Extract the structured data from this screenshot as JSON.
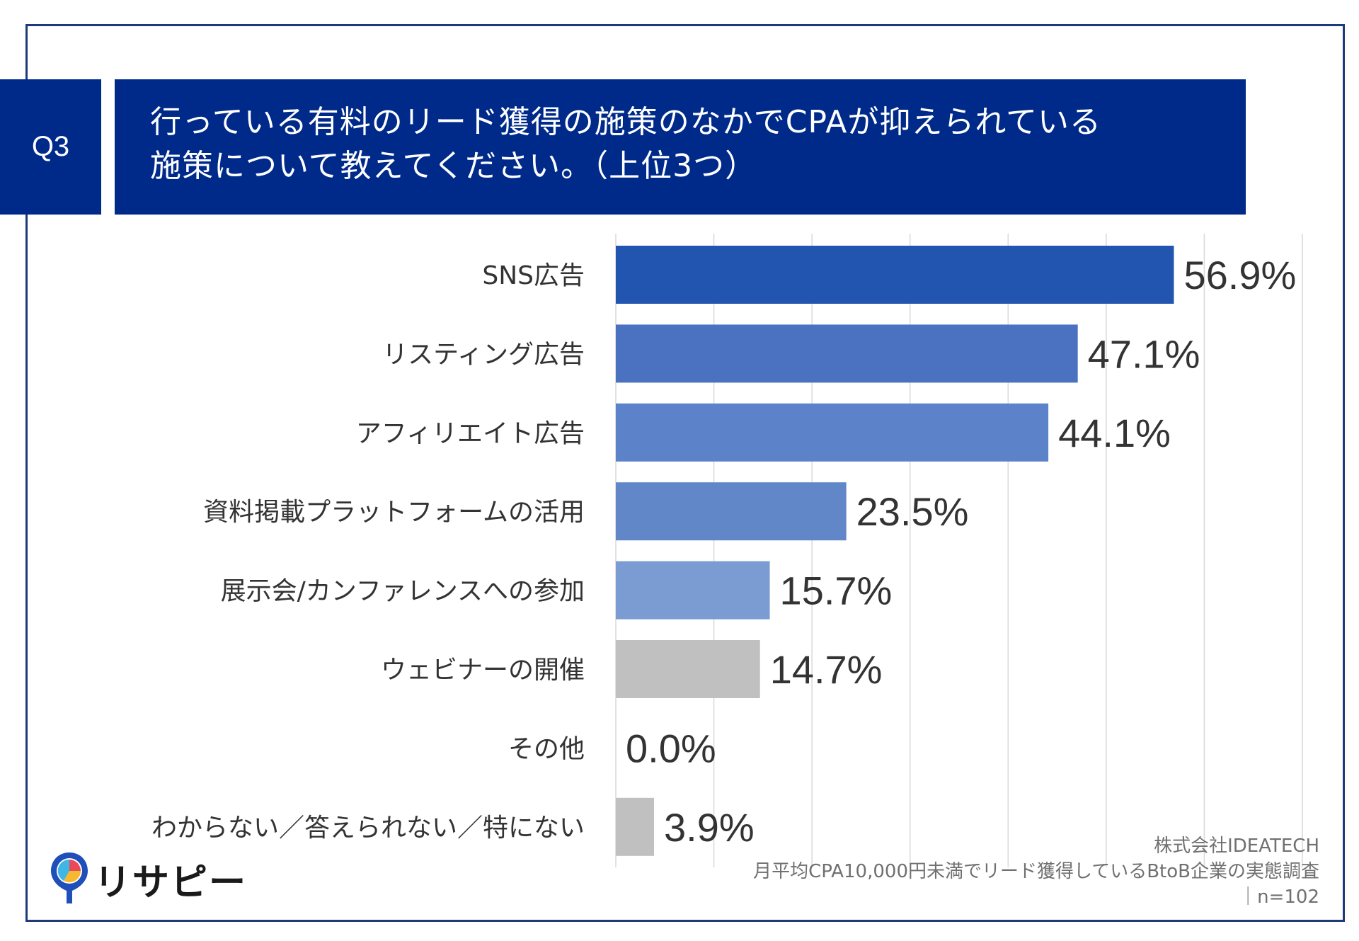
{
  "header": {
    "badge": "Q3",
    "title_line1": "行っている有料のリード獲得の施策のなかでCPAが抑えられている",
    "title_line2": "施策について教えてください。（上位3つ）"
  },
  "chart_data": {
    "type": "bar",
    "orientation": "horizontal",
    "title": "行っている有料のリード獲得の施策のなかでCPAが抑えられている施策について教えてください。（上位3つ）",
    "categories": [
      "SNS広告",
      "リスティング広告",
      "アフィリエイト広告",
      "資料掲載プラットフォームの活用",
      "展示会/カンファレンスへの参加",
      "ウェビナーの開催",
      "その他",
      "わからない／答えられない／特にない"
    ],
    "values": [
      56.9,
      47.1,
      44.1,
      23.5,
      15.7,
      14.7,
      0.0,
      3.9
    ],
    "value_labels": [
      "56.9%",
      "47.1%",
      "44.1%",
      "23.5%",
      "15.7%",
      "14.7%",
      "0.0%",
      "3.9%"
    ],
    "bar_colors": [
      "#2255b0",
      "#4a72c0",
      "#5c82c9",
      "#6287c9",
      "#7b9bd3",
      "#c0c0c0",
      "#c0c0c0",
      "#c0c0c0"
    ],
    "xlim": [
      0,
      70
    ],
    "gridlines": true,
    "xlabel": "",
    "ylabel": ""
  },
  "source": {
    "company": "株式会社IDEATECH",
    "survey": "月平均CPA10,000円未満でリード獲得しているBtoB企業の実態調査",
    "sample": "｜n=102"
  },
  "logo": {
    "text": "リサピー"
  }
}
